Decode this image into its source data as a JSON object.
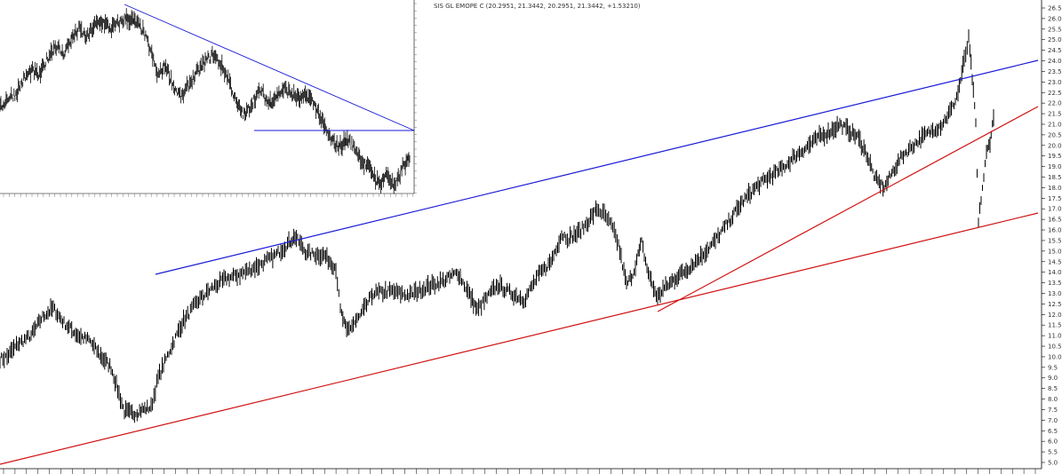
{
  "chart_data": [
    {
      "type": "line",
      "title": "SIS GL EMOPE C (20.2951, 21.3442, 20.2951, 21.3442, +1.53210)",
      "xlabel": "",
      "ylabel": "",
      "ylim": [
        5.0,
        26.5
      ],
      "y_axis_position": "right",
      "y_ticks": [
        "5.0",
        "5.5",
        "6.0",
        "6.5",
        "7.0",
        "7.5",
        "8.0",
        "8.5",
        "9.0",
        "9.5",
        "10.0",
        "10.5",
        "11.0",
        "11.5",
        "12.0",
        "12.5",
        "13.0",
        "13.5",
        "14.0",
        "14.5",
        "15.0",
        "15.5",
        "16.0",
        "16.5",
        "17.0",
        "17.5",
        "18.0",
        "18.5",
        "19.0",
        "19.5",
        "20.0",
        "20.5",
        "21.0",
        "21.5",
        "22.0",
        "22.5",
        "23.0",
        "23.5",
        "24.0",
        "24.5",
        "25.0",
        "25.5",
        "26.0",
        "26.5"
      ],
      "grid": false,
      "series": [
        {
          "color": "#000000",
          "x": [
            0,
            8,
            20,
            35,
            48,
            60,
            72,
            88,
            100,
            112,
            125,
            140,
            150,
            160,
            170,
            178,
            190,
            205,
            222,
            240,
            255,
            270,
            290,
            310,
            325,
            332,
            345,
            365,
            378,
            383,
            390,
            405,
            420,
            440,
            460,
            480,
            500,
            515,
            530,
            537,
            548,
            560,
            575,
            590,
            605,
            620,
            632,
            640,
            652,
            660,
            672,
            680,
            688,
            696,
            705,
            712,
            718,
            722,
            728,
            734,
            740,
            746,
            752,
            762,
            775,
            790,
            805,
            820,
            835,
            850,
            865,
            880,
            895,
            910,
            922,
            932,
            945,
            955,
            965,
            975,
            985,
            995,
            1005,
            1015,
            1030,
            1045,
            1060,
            1072,
            1078,
            1085,
            1090,
            1094,
            1098,
            1101,
            1104,
            1107,
            1110,
            1114,
            1118
          ],
          "values": [
            9.9,
            10.0,
            10.6,
            11.0,
            11.9,
            12.3,
            11.6,
            11.0,
            10.8,
            10.1,
            9.5,
            7.4,
            7.3,
            7.5,
            7.6,
            9.0,
            10.2,
            11.6,
            12.6,
            13.3,
            13.7,
            13.9,
            14.3,
            14.8,
            15.4,
            15.7,
            14.9,
            14.8,
            14.2,
            12.2,
            11.2,
            11.9,
            13.0,
            13.1,
            12.9,
            13.3,
            13.6,
            14.0,
            12.8,
            12.2,
            12.8,
            13.4,
            13.0,
            12.7,
            13.8,
            14.5,
            15.8,
            15.6,
            15.9,
            16.3,
            17.0,
            16.7,
            16.2,
            15.3,
            13.4,
            13.9,
            14.8,
            15.4,
            14.2,
            13.4,
            12.8,
            13.2,
            13.4,
            13.8,
            14.2,
            14.8,
            15.5,
            16.4,
            17.3,
            18.0,
            18.5,
            18.9,
            19.5,
            20.0,
            20.4,
            20.6,
            21.0,
            20.7,
            20.4,
            19.6,
            18.4,
            18.0,
            18.8,
            19.5,
            20.1,
            20.6,
            21.0,
            21.8,
            22.5,
            24.0,
            25.0,
            23.2,
            21.0,
            16.3,
            17.5,
            18.5,
            19.6,
            20.2,
            21.3
          ]
        }
      ]
    },
    {
      "type": "line",
      "title": "",
      "xlabel": "",
      "ylabel": "",
      "grid": false,
      "series": [
        {
          "color": "#000000",
          "values": [
            18.2,
            18.8,
            19.0,
            19.8,
            20.3,
            20.0,
            21.0,
            21.7,
            21.2,
            22.0,
            22.6,
            22.1,
            22.8,
            23.0,
            22.6,
            22.9,
            23.2,
            23.0,
            22.6,
            21.5,
            20.0,
            20.6,
            19.4,
            18.8,
            19.6,
            20.2,
            20.8,
            21.2,
            20.6,
            19.8,
            18.4,
            17.8,
            18.6,
            19.2,
            18.5,
            18.9,
            19.3,
            19.0,
            18.7,
            18.9,
            18.3,
            17.2,
            16.4,
            16.1,
            16.5,
            16.0,
            15.2,
            14.8,
            14.0,
            14.6,
            13.8,
            15.0,
            15.4
          ]
        }
      ]
    }
  ]
}
